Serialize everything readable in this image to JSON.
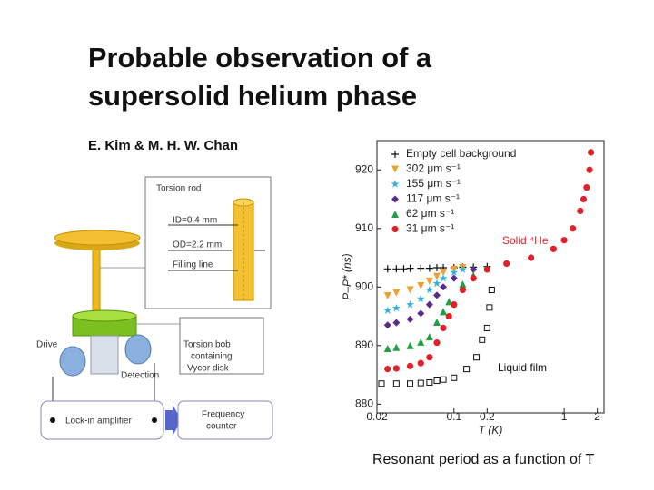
{
  "title": [
    "Probable observation of a",
    "supersolid helium phase"
  ],
  "authors": "E. Kim & M. H. W. Chan",
  "diagram": {
    "torsion_rod": "Torsion rod",
    "id": "ID=0.4 mm",
    "od": "OD=2.2 mm",
    "filling_line": "Filling line",
    "drive": "Drive",
    "detection": "Detection",
    "torsion_bob": [
      "Torsion bob",
      "containing",
      "Vycor disk"
    ],
    "lock_in": "Lock-in amplifier",
    "frequency_counter": [
      "Frequency",
      "counter"
    ]
  },
  "chart_data": {
    "type": "scatter",
    "x_label": "T (K)",
    "y_label": "P–P* (ns)",
    "xscale": "log",
    "xlim": [
      0.02,
      2.3
    ],
    "ylim": [
      878.5,
      925
    ],
    "xticks": [
      0.02,
      0.1,
      0.2,
      1,
      2
    ],
    "yticks": [
      880,
      890,
      900,
      910,
      920
    ],
    "legend": "upper left",
    "annotations": [
      {
        "text": "Solid ⁴He",
        "color": "#e0202a"
      },
      {
        "text": "Liquid film",
        "color": "#111111"
      }
    ],
    "series": [
      {
        "name": "Empty cell background",
        "color": "#111111",
        "marker": "+",
        "x": [
          0.025,
          0.03,
          0.035,
          0.04,
          0.05,
          0.06,
          0.07,
          0.08,
          0.1,
          0.12,
          0.15,
          0.2
        ],
        "values": [
          903.1,
          903.1,
          903.1,
          903.2,
          903.2,
          903.2,
          903.3,
          903.3,
          903.3,
          903.4,
          903.4,
          903.5
        ]
      },
      {
        "name": "302 μm s⁻¹",
        "color": "#f0a030",
        "marker": "v",
        "x": [
          0.025,
          0.03,
          0.04,
          0.05,
          0.06,
          0.07,
          0.08,
          0.1,
          0.12
        ],
        "values": [
          898.5,
          899,
          899.5,
          900.2,
          901,
          901.8,
          902.5,
          903,
          903.3
        ]
      },
      {
        "name": "155 μm s⁻¹",
        "color": "#30b0e0",
        "marker": "*",
        "x": [
          0.025,
          0.03,
          0.04,
          0.05,
          0.06,
          0.07,
          0.08,
          0.1,
          0.12
        ],
        "values": [
          896,
          896.4,
          897,
          898,
          899.5,
          900.6,
          901.5,
          902.5,
          903
        ]
      },
      {
        "name": "117 μm s⁻¹",
        "color": "#5a2a8a",
        "marker": "D",
        "x": [
          0.025,
          0.03,
          0.04,
          0.05,
          0.06,
          0.07,
          0.08,
          0.1,
          0.15
        ],
        "values": [
          893.5,
          893.9,
          894.5,
          895.5,
          897,
          898.6,
          900,
          901.5,
          903
        ]
      },
      {
        "name": "62 μm s⁻¹",
        "color": "#20a040",
        "marker": "^",
        "x": [
          0.025,
          0.03,
          0.04,
          0.05,
          0.06,
          0.07,
          0.08,
          0.09,
          0.12,
          0.15
        ],
        "values": [
          889.5,
          889.7,
          890,
          890.6,
          891.5,
          894,
          895.8,
          897.5,
          900.5,
          902
        ]
      },
      {
        "name": "31 μm s⁻¹",
        "color": "#e0202a",
        "marker": "o",
        "x": [
          0.025,
          0.03,
          0.04,
          0.05,
          0.06,
          0.07,
          0.08,
          0.09,
          0.1,
          0.12,
          0.15,
          0.2,
          0.3,
          0.5,
          0.8,
          1.0,
          1.2,
          1.4,
          1.5,
          1.6,
          1.7,
          1.75
        ],
        "values": [
          886,
          886.1,
          886.5,
          887,
          888,
          890.5,
          893,
          895,
          897,
          899.5,
          901.5,
          903,
          904,
          905,
          906.5,
          908,
          910,
          913,
          915,
          917,
          920,
          923
        ]
      },
      {
        "color": "#111111",
        "marker": "s",
        "x": [
          0.022,
          0.03,
          0.04,
          0.05,
          0.06,
          0.07,
          0.08,
          0.1,
          0.13,
          0.16,
          0.18,
          0.2,
          0.21,
          0.22
        ],
        "values": [
          883.5,
          883.5,
          883.5,
          883.6,
          883.7,
          884,
          884.2,
          884.5,
          886,
          888,
          891,
          893,
          896.5,
          899.5
        ]
      }
    ]
  },
  "caption": "Resonant period as a function of T"
}
